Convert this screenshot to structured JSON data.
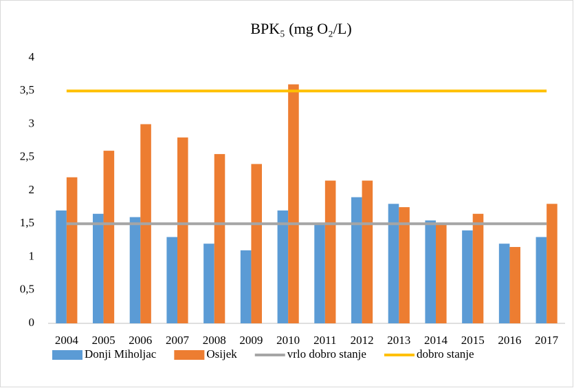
{
  "chart_data": {
    "type": "bar",
    "title": "BPK₅ (mg O₂/L)",
    "categories": [
      "2004",
      "2005",
      "2006",
      "2007",
      "2008",
      "2009",
      "2010",
      "2011",
      "2012",
      "2013",
      "2014",
      "2015",
      "2016",
      "2017"
    ],
    "series": [
      {
        "name": "Donji Miholjac",
        "type": "bar",
        "color": "#5b9bd5",
        "values": [
          1.7,
          1.65,
          1.6,
          1.3,
          1.2,
          1.1,
          1.7,
          1.5,
          1.9,
          1.8,
          1.55,
          1.4,
          1.2,
          1.3
        ]
      },
      {
        "name": "Osijek",
        "type": "bar",
        "color": "#ed7d31",
        "values": [
          2.2,
          2.6,
          3.0,
          2.8,
          2.55,
          2.4,
          3.6,
          2.15,
          2.15,
          1.75,
          1.5,
          1.65,
          1.15,
          1.8
        ]
      },
      {
        "name": "vrlo dobro stanje",
        "type": "line",
        "color": "#a5a5a5",
        "values": [
          1.5,
          1.5,
          1.5,
          1.5,
          1.5,
          1.5,
          1.5,
          1.5,
          1.5,
          1.5,
          1.5,
          1.5,
          1.5,
          1.5
        ]
      },
      {
        "name": "dobro stanje",
        "type": "line",
        "color": "#ffc000",
        "values": [
          3.5,
          3.5,
          3.5,
          3.5,
          3.5,
          3.5,
          3.5,
          3.5,
          3.5,
          3.5,
          3.5,
          3.5,
          3.5,
          3.5
        ]
      }
    ],
    "ylim": [
      0,
      4
    ],
    "yticks": [
      0,
      {
        "value": 0.5,
        "label": "0,5"
      },
      1,
      {
        "value": 1.5,
        "label": "1,5"
      },
      2,
      {
        "value": 2.5,
        "label": "2,5"
      },
      3,
      {
        "value": 3.5,
        "label": "3,5"
      },
      4
    ],
    "grid": false,
    "legend": "bottom"
  }
}
